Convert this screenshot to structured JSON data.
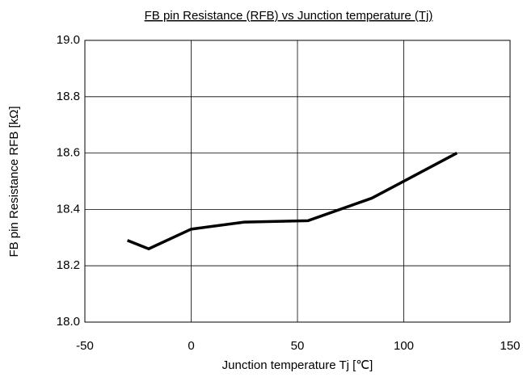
{
  "chart_data": {
    "type": "line",
    "title": "FB pin Resistance (RFB) vs Junction temperature (Tj)",
    "x_label": "Junction temperature Tj [℃]",
    "y_label": "FB pin Resistance RFB [kΩ]",
    "x": [
      -30,
      -20,
      0,
      25,
      55,
      85,
      125
    ],
    "series": [
      {
        "name": "RFB",
        "color": "#000000",
        "values": [
          18.29,
          18.26,
          18.33,
          18.355,
          18.36,
          18.44,
          18.6
        ]
      }
    ],
    "xlim": [
      -50,
      150
    ],
    "xticks": [
      -50,
      0,
      50,
      100,
      150
    ],
    "ylim": [
      18.0,
      19.0
    ],
    "yticks": [
      {
        "value": 18.0,
        "label": "18.0"
      },
      18.2,
      18.4,
      18.6,
      18.8,
      {
        "value": 19.0,
        "label": "19.0"
      }
    ],
    "grid": true
  }
}
